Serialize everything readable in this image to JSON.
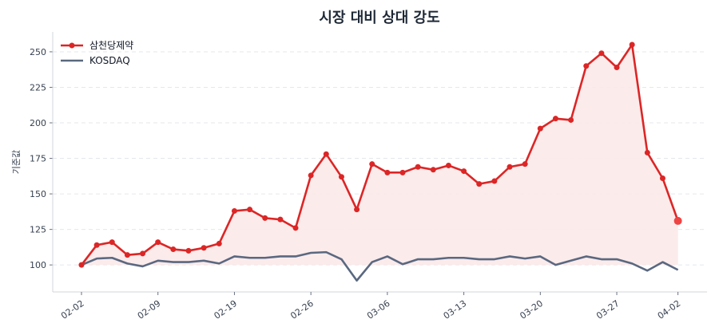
{
  "chart_data": {
    "type": "line",
    "title": "시장 대비 상대 강도",
    "xlabel": "",
    "ylabel": "기준값",
    "x": [
      "02-02",
      "02-03",
      "02-04",
      "02-05",
      "02-06",
      "02-09",
      "02-10",
      "02-11",
      "02-12",
      "02-13",
      "02-19",
      "02-20",
      "02-23",
      "02-24",
      "02-25",
      "02-26",
      "02-27",
      "03-03",
      "03-04",
      "03-05",
      "03-06",
      "03-09",
      "03-10",
      "03-11",
      "03-12",
      "03-13",
      "03-16",
      "03-17",
      "03-18",
      "03-19",
      "03-20",
      "03-23",
      "03-24",
      "03-25",
      "03-26",
      "03-27",
      "03-30",
      "03-31",
      "04-01",
      "04-02"
    ],
    "x_ticks": [
      "02-02",
      "02-09",
      "02-19",
      "02-26",
      "03-06",
      "03-13",
      "03-20",
      "03-27",
      "04-02"
    ],
    "y_ticks": [
      100,
      125,
      150,
      175,
      200,
      225,
      250
    ],
    "ylim": [
      81,
      264
    ],
    "grid": "horizontal dashed",
    "legend_position": "top-left",
    "series": [
      {
        "name": "삼천당제약",
        "color": "#dc2626",
        "fill": "#fbe9e9",
        "markers": true,
        "values": [
          100,
          114,
          116,
          107,
          108,
          116,
          111,
          110,
          112,
          115,
          138,
          139,
          133,
          132,
          126,
          163,
          178,
          162,
          139,
          171,
          165,
          165,
          169,
          167,
          170,
          166,
          157,
          159,
          169,
          171,
          196,
          203,
          202,
          240,
          249,
          239,
          255,
          179,
          161,
          131
        ]
      },
      {
        "name": "KOSDAQ",
        "color": "#5a6880",
        "markers": false,
        "values": [
          100,
          104.5,
          105,
          101,
          99,
          103,
          102,
          102,
          103,
          101,
          106,
          105,
          105,
          106,
          106,
          108.5,
          109,
          104,
          89,
          102,
          106,
          100.5,
          104,
          104,
          105,
          105,
          104,
          104,
          106,
          104.5,
          106,
          100,
          103,
          106,
          104,
          104,
          101,
          96,
          102,
          96.5
        ]
      }
    ]
  }
}
